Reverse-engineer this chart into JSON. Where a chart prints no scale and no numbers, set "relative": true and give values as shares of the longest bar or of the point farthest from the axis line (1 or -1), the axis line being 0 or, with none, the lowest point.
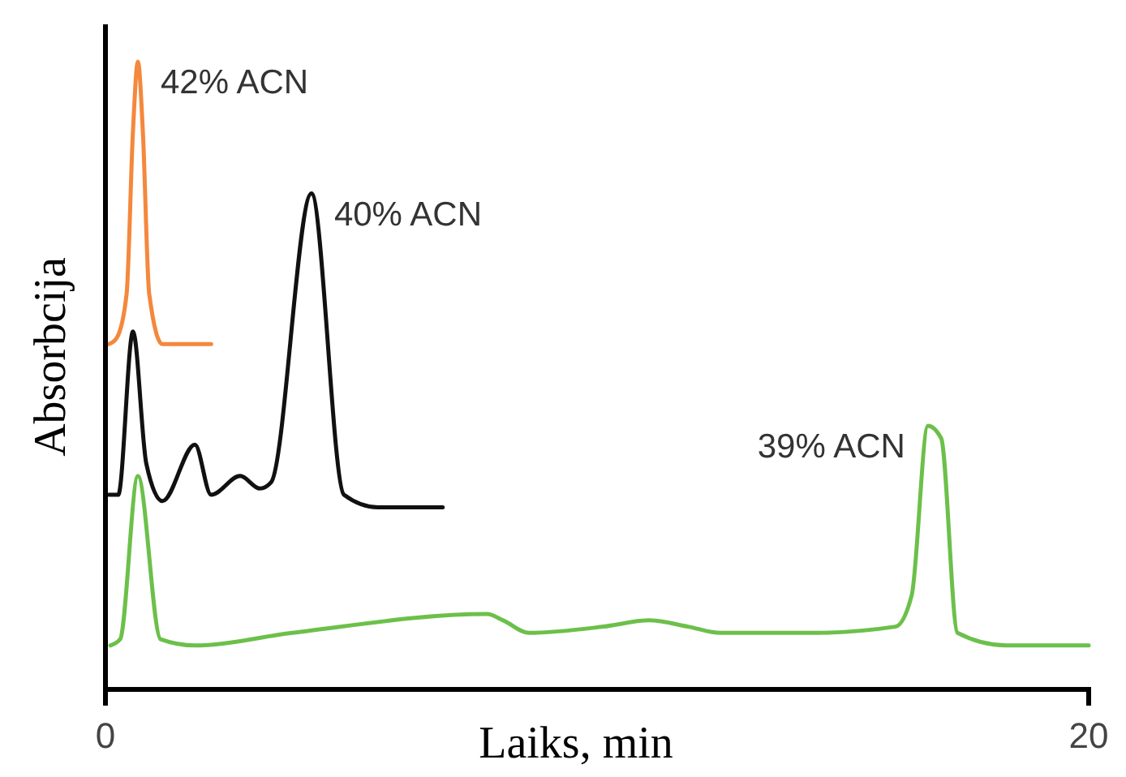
{
  "chart_data": {
    "type": "line",
    "relative": true,
    "xlabel": "Laiks, min",
    "ylabel": "Absorbcija",
    "xlim": [
      0,
      20
    ],
    "xticks": [
      0,
      20
    ],
    "line_style": "solid",
    "series": [
      {
        "name": "42% ACN",
        "color": "#f4883c",
        "x": [
          0.07,
          0.23,
          0.43,
          0.56,
          0.66,
          0.76,
          0.89,
          1.16,
          1.49,
          2.15
        ],
        "values": [
          0.55,
          0.56,
          0.63,
          0.89,
          1.0,
          0.89,
          0.63,
          0.55,
          0.55,
          0.55
        ]
      },
      {
        "name": "40% ACN",
        "color": "#111111",
        "x": [
          0.07,
          0.26,
          0.56,
          0.83,
          1.16,
          1.82,
          2.15,
          2.74,
          3.14,
          3.37,
          4.19,
          4.85,
          5.54,
          6.86
        ],
        "values": [
          0.31,
          0.31,
          0.57,
          0.36,
          0.3,
          0.39,
          0.31,
          0.34,
          0.32,
          0.33,
          0.79,
          0.31,
          0.29,
          0.29
        ]
      },
      {
        "name": "39% ACN",
        "color": "#6cc04a",
        "x": [
          0.1,
          0.3,
          0.66,
          1.12,
          1.82,
          3.8,
          7.76,
          8.09,
          8.61,
          10.13,
          11.06,
          11.85,
          12.51,
          14.36,
          16.07,
          16.4,
          16.73,
          17.0,
          17.33,
          18.32,
          20.0
        ],
        "values": [
          0.07,
          0.08,
          0.34,
          0.08,
          0.07,
          0.09,
          0.12,
          0.11,
          0.09,
          0.1,
          0.11,
          0.1,
          0.09,
          0.09,
          0.1,
          0.15,
          0.42,
          0.4,
          0.09,
          0.07,
          0.07
        ]
      }
    ]
  }
}
